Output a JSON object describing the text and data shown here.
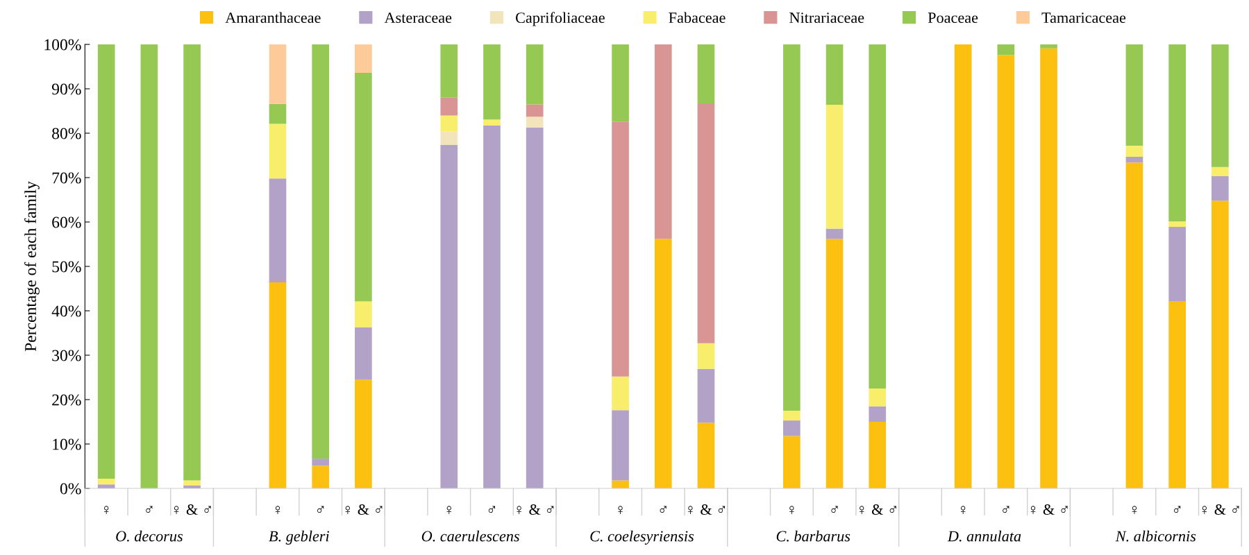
{
  "chart_data": {
    "type": "bar",
    "stacked": true,
    "ylabel": "Percentage of each family",
    "categories": [
      "♀",
      "♂",
      "♀ & ♂",
      null,
      "♀",
      "♂",
      "♀ & ♂",
      null,
      "♀",
      "♂",
      "♀ & ♂",
      null,
      "♀",
      "♂",
      "♀ & ♂",
      null,
      "♀",
      "♂",
      "♀ & ♂",
      null,
      "♀",
      "♂",
      "♀ & ♂",
      null,
      "♀",
      "♂",
      "♀ & ♂"
    ],
    "annotations": [
      "O. decorus",
      "B. gebleri",
      "O. caerulescens",
      "C. coelesyriensis",
      "C. barbarus",
      "D. annulata",
      "N. albicornis"
    ],
    "series": [
      {
        "name": "Amaranthaceae",
        "color": "#fcc010",
        "values": [
          0,
          0,
          0,
          null,
          46.4,
          5.1,
          24.5,
          null,
          0,
          0,
          0,
          null,
          1.8,
          56.2,
          14.8,
          null,
          11.8,
          56.2,
          15.0,
          null,
          100,
          97.6,
          99.1,
          null,
          73.4,
          42.2,
          64.8
        ]
      },
      {
        "name": "Asteraceae",
        "color": "#b3a2c7",
        "values": [
          0.9,
          0,
          0.7,
          null,
          23.4,
          1.6,
          11.8,
          null,
          77.4,
          81.7,
          81.3,
          null,
          15.8,
          0,
          12.1,
          null,
          3.5,
          2.3,
          3.5,
          null,
          0,
          0,
          0,
          null,
          1.3,
          16.7,
          5.5
        ]
      },
      {
        "name": "Caprifoliaceae",
        "color": "#f2e4bb",
        "values": [
          0,
          0,
          0,
          null,
          0,
          0,
          0,
          null,
          3.0,
          0,
          2.4,
          null,
          0,
          0,
          0,
          null,
          0,
          0,
          0,
          null,
          0,
          0,
          0,
          null,
          0,
          0,
          0
        ]
      },
      {
        "name": "Fabaceae",
        "color": "#f9ee6c",
        "values": [
          1.3,
          0,
          1.1,
          null,
          12.3,
          0,
          5.8,
          null,
          3.6,
          1.4,
          0,
          null,
          7.6,
          0,
          5.8,
          null,
          2.2,
          27.9,
          4.0,
          null,
          0,
          0,
          0,
          null,
          2.5,
          1.2,
          2.1
        ]
      },
      {
        "name": "Nitrariaceae",
        "color": "#d99594",
        "values": [
          0,
          0,
          0,
          null,
          0,
          0,
          0,
          null,
          4.0,
          0,
          2.8,
          null,
          57.4,
          43.8,
          54.0,
          null,
          0,
          0,
          0,
          null,
          0,
          0,
          0,
          null,
          0,
          0,
          0
        ]
      },
      {
        "name": "Poaceae",
        "color": "#96c954",
        "values": [
          97.8,
          100,
          98.2,
          null,
          4.5,
          93.3,
          51.5,
          null,
          12.0,
          16.9,
          13.5,
          null,
          17.4,
          0,
          13.3,
          null,
          82.5,
          13.6,
          77.5,
          null,
          0,
          2.4,
          0.9,
          null,
          22.8,
          39.9,
          27.6
        ]
      },
      {
        "name": "Tamaricaceae",
        "color": "#fdca99",
        "values": [
          0,
          0,
          0,
          null,
          13.4,
          0,
          6.4,
          null,
          0,
          0,
          0,
          null,
          0,
          0,
          0,
          null,
          0,
          0,
          0,
          null,
          0,
          0,
          0,
          null,
          0,
          0,
          0
        ]
      }
    ],
    "ylim": [
      0,
      100
    ],
    "yticks": [
      {
        "value": 0,
        "label": "0%"
      },
      {
        "value": 10,
        "label": "10%"
      },
      {
        "value": 20,
        "label": "20%"
      },
      {
        "value": 30,
        "label": "30%"
      },
      {
        "value": 40,
        "label": "40%"
      },
      {
        "value": 50,
        "label": "50%"
      },
      {
        "value": 60,
        "label": "60%"
      },
      {
        "value": 70,
        "label": "70%"
      },
      {
        "value": 80,
        "label": "80%"
      },
      {
        "value": 90,
        "label": "90%"
      },
      {
        "value": 100,
        "label": "100%"
      }
    ],
    "grid": false,
    "legend": "top"
  }
}
